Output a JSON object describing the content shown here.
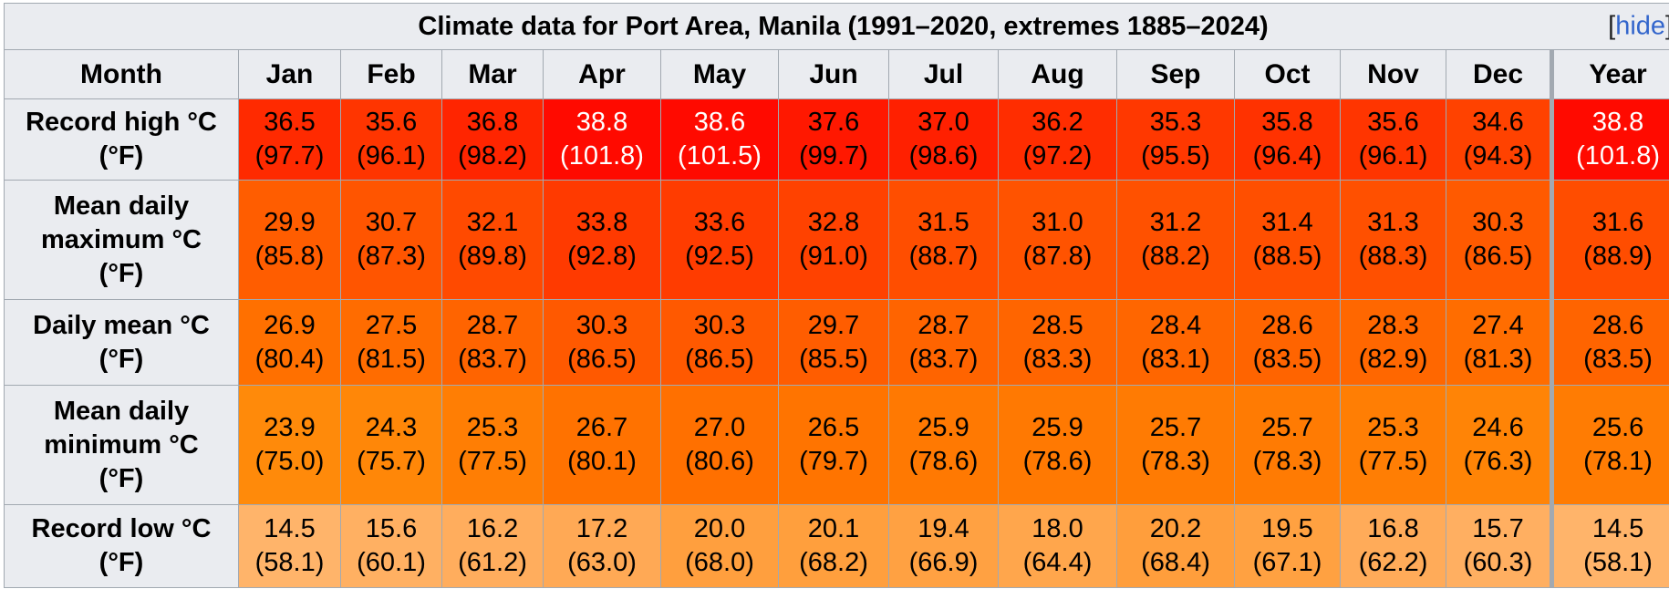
{
  "title": "Climate data for Port Area, Manila (1991–2020, extremes 1885–2024)",
  "hide_bracket_open": "[",
  "hide_label": "hide",
  "hide_bracket_close": "]",
  "header": {
    "month": "Month",
    "months": [
      "Jan",
      "Feb",
      "Mar",
      "Apr",
      "May",
      "Jun",
      "Jul",
      "Aug",
      "Sep",
      "Oct",
      "Nov",
      "Dec"
    ],
    "year": "Year"
  },
  "rows": [
    {
      "key": "high",
      "label_lines": [
        "Record high °C",
        "(°F)"
      ],
      "c": [
        "36.5",
        "35.6",
        "36.8",
        "38.8",
        "38.6",
        "37.6",
        "37.0",
        "36.2",
        "35.3",
        "35.8",
        "35.6",
        "34.6",
        "38.8"
      ],
      "f": [
        "(97.7)",
        "(96.1)",
        "(98.2)",
        "(101.8)",
        "(101.5)",
        "(99.7)",
        "(98.6)",
        "(97.2)",
        "(95.5)",
        "(96.4)",
        "(96.1)",
        "(94.3)",
        "(101.8)"
      ],
      "bg": [
        "#ff2a00",
        "#ff3500",
        "#ff2500",
        "#ff0a00",
        "#ff0a00",
        "#ff1800",
        "#ff2000",
        "#ff2d00",
        "#ff3800",
        "#ff3200",
        "#ff3500",
        "#ff4200",
        "#ff0a00"
      ],
      "fg": [
        "#000000",
        "#000000",
        "#000000",
        "#ffffff",
        "#ffffff",
        "#000000",
        "#000000",
        "#000000",
        "#000000",
        "#000000",
        "#000000",
        "#000000",
        "#ffffff"
      ]
    },
    {
      "key": "max",
      "label_lines": [
        "Mean daily",
        "maximum °C",
        "(°F)"
      ],
      "c": [
        "29.9",
        "30.7",
        "32.1",
        "33.8",
        "33.6",
        "32.8",
        "31.5",
        "31.0",
        "31.2",
        "31.4",
        "31.3",
        "30.3",
        "31.6"
      ],
      "f": [
        "(85.8)",
        "(87.3)",
        "(89.8)",
        "(92.8)",
        "(92.5)",
        "(91.0)",
        "(88.7)",
        "(87.8)",
        "(88.2)",
        "(88.5)",
        "(88.3)",
        "(86.5)",
        "(88.9)"
      ],
      "bg": [
        "#ff5d00",
        "#ff5500",
        "#ff4a00",
        "#ff3a00",
        "#ff3c00",
        "#ff4200",
        "#ff4e00",
        "#ff5300",
        "#ff5100",
        "#ff4f00",
        "#ff5000",
        "#ff5a00",
        "#ff4d00"
      ],
      "fg": [
        "#000000",
        "#000000",
        "#000000",
        "#000000",
        "#000000",
        "#000000",
        "#000000",
        "#000000",
        "#000000",
        "#000000",
        "#000000",
        "#000000",
        "#000000"
      ]
    },
    {
      "key": "mean",
      "label_lines": [
        "Daily mean °C",
        "(°F)"
      ],
      "c": [
        "26.9",
        "27.5",
        "28.7",
        "30.3",
        "30.3",
        "29.7",
        "28.7",
        "28.5",
        "28.4",
        "28.6",
        "28.3",
        "27.4",
        "28.6"
      ],
      "f": [
        "(80.4)",
        "(81.5)",
        "(83.7)",
        "(86.5)",
        "(86.5)",
        "(85.5)",
        "(83.7)",
        "(83.3)",
        "(83.1)",
        "(83.5)",
        "(82.9)",
        "(81.3)",
        "(83.5)"
      ],
      "bg": [
        "#ff7000",
        "#ff6c00",
        "#ff6400",
        "#ff5900",
        "#ff5900",
        "#ff5d00",
        "#ff6400",
        "#ff6500",
        "#ff6600",
        "#ff6400",
        "#ff6700",
        "#ff6d00",
        "#ff6400"
      ],
      "fg": [
        "#000000",
        "#000000",
        "#000000",
        "#000000",
        "#000000",
        "#000000",
        "#000000",
        "#000000",
        "#000000",
        "#000000",
        "#000000",
        "#000000",
        "#000000"
      ]
    },
    {
      "key": "min",
      "label_lines": [
        "Mean daily",
        "minimum °C",
        "(°F)"
      ],
      "c": [
        "23.9",
        "24.3",
        "25.3",
        "26.7",
        "27.0",
        "26.5",
        "25.9",
        "25.9",
        "25.7",
        "25.7",
        "25.3",
        "24.6",
        "25.6"
      ],
      "f": [
        "(75.0)",
        "(75.7)",
        "(77.5)",
        "(80.1)",
        "(80.6)",
        "(79.7)",
        "(78.6)",
        "(78.6)",
        "(78.3)",
        "(78.3)",
        "(77.5)",
        "(76.3)",
        "(78.1)"
      ],
      "bg": [
        "#ff8a0a",
        "#ff8708",
        "#ff7e04",
        "#ff7200",
        "#ff7000",
        "#ff7400",
        "#ff7902",
        "#ff7902",
        "#ff7b03",
        "#ff7b03",
        "#ff7e04",
        "#ff8406",
        "#ff7c03"
      ],
      "fg": [
        "#000000",
        "#000000",
        "#000000",
        "#000000",
        "#000000",
        "#000000",
        "#000000",
        "#000000",
        "#000000",
        "#000000",
        "#000000",
        "#000000",
        "#000000"
      ]
    },
    {
      "key": "low",
      "label_lines": [
        "Record low °C",
        "(°F)"
      ],
      "c": [
        "14.5",
        "15.6",
        "16.2",
        "17.2",
        "20.0",
        "20.1",
        "19.4",
        "18.0",
        "20.2",
        "19.5",
        "16.8",
        "15.7",
        "14.5"
      ],
      "f": [
        "(58.1)",
        "(60.1)",
        "(61.2)",
        "(63.0)",
        "(68.0)",
        "(68.2)",
        "(66.9)",
        "(64.4)",
        "(68.4)",
        "(67.1)",
        "(62.2)",
        "(60.3)",
        "(58.1)"
      ],
      "bg": [
        "#ffb46a",
        "#ffb062",
        "#ffad5d",
        "#ffa955",
        "#ff9f3e",
        "#ff9f3d",
        "#ffa142",
        "#ffa64c",
        "#ff9e3c",
        "#ffa141",
        "#ffab59",
        "#ffaf61",
        "#ffb46a"
      ],
      "fg": [
        "#000000",
        "#000000",
        "#000000",
        "#000000",
        "#000000",
        "#000000",
        "#000000",
        "#000000",
        "#000000",
        "#000000",
        "#000000",
        "#000000",
        "#000000"
      ]
    }
  ]
}
